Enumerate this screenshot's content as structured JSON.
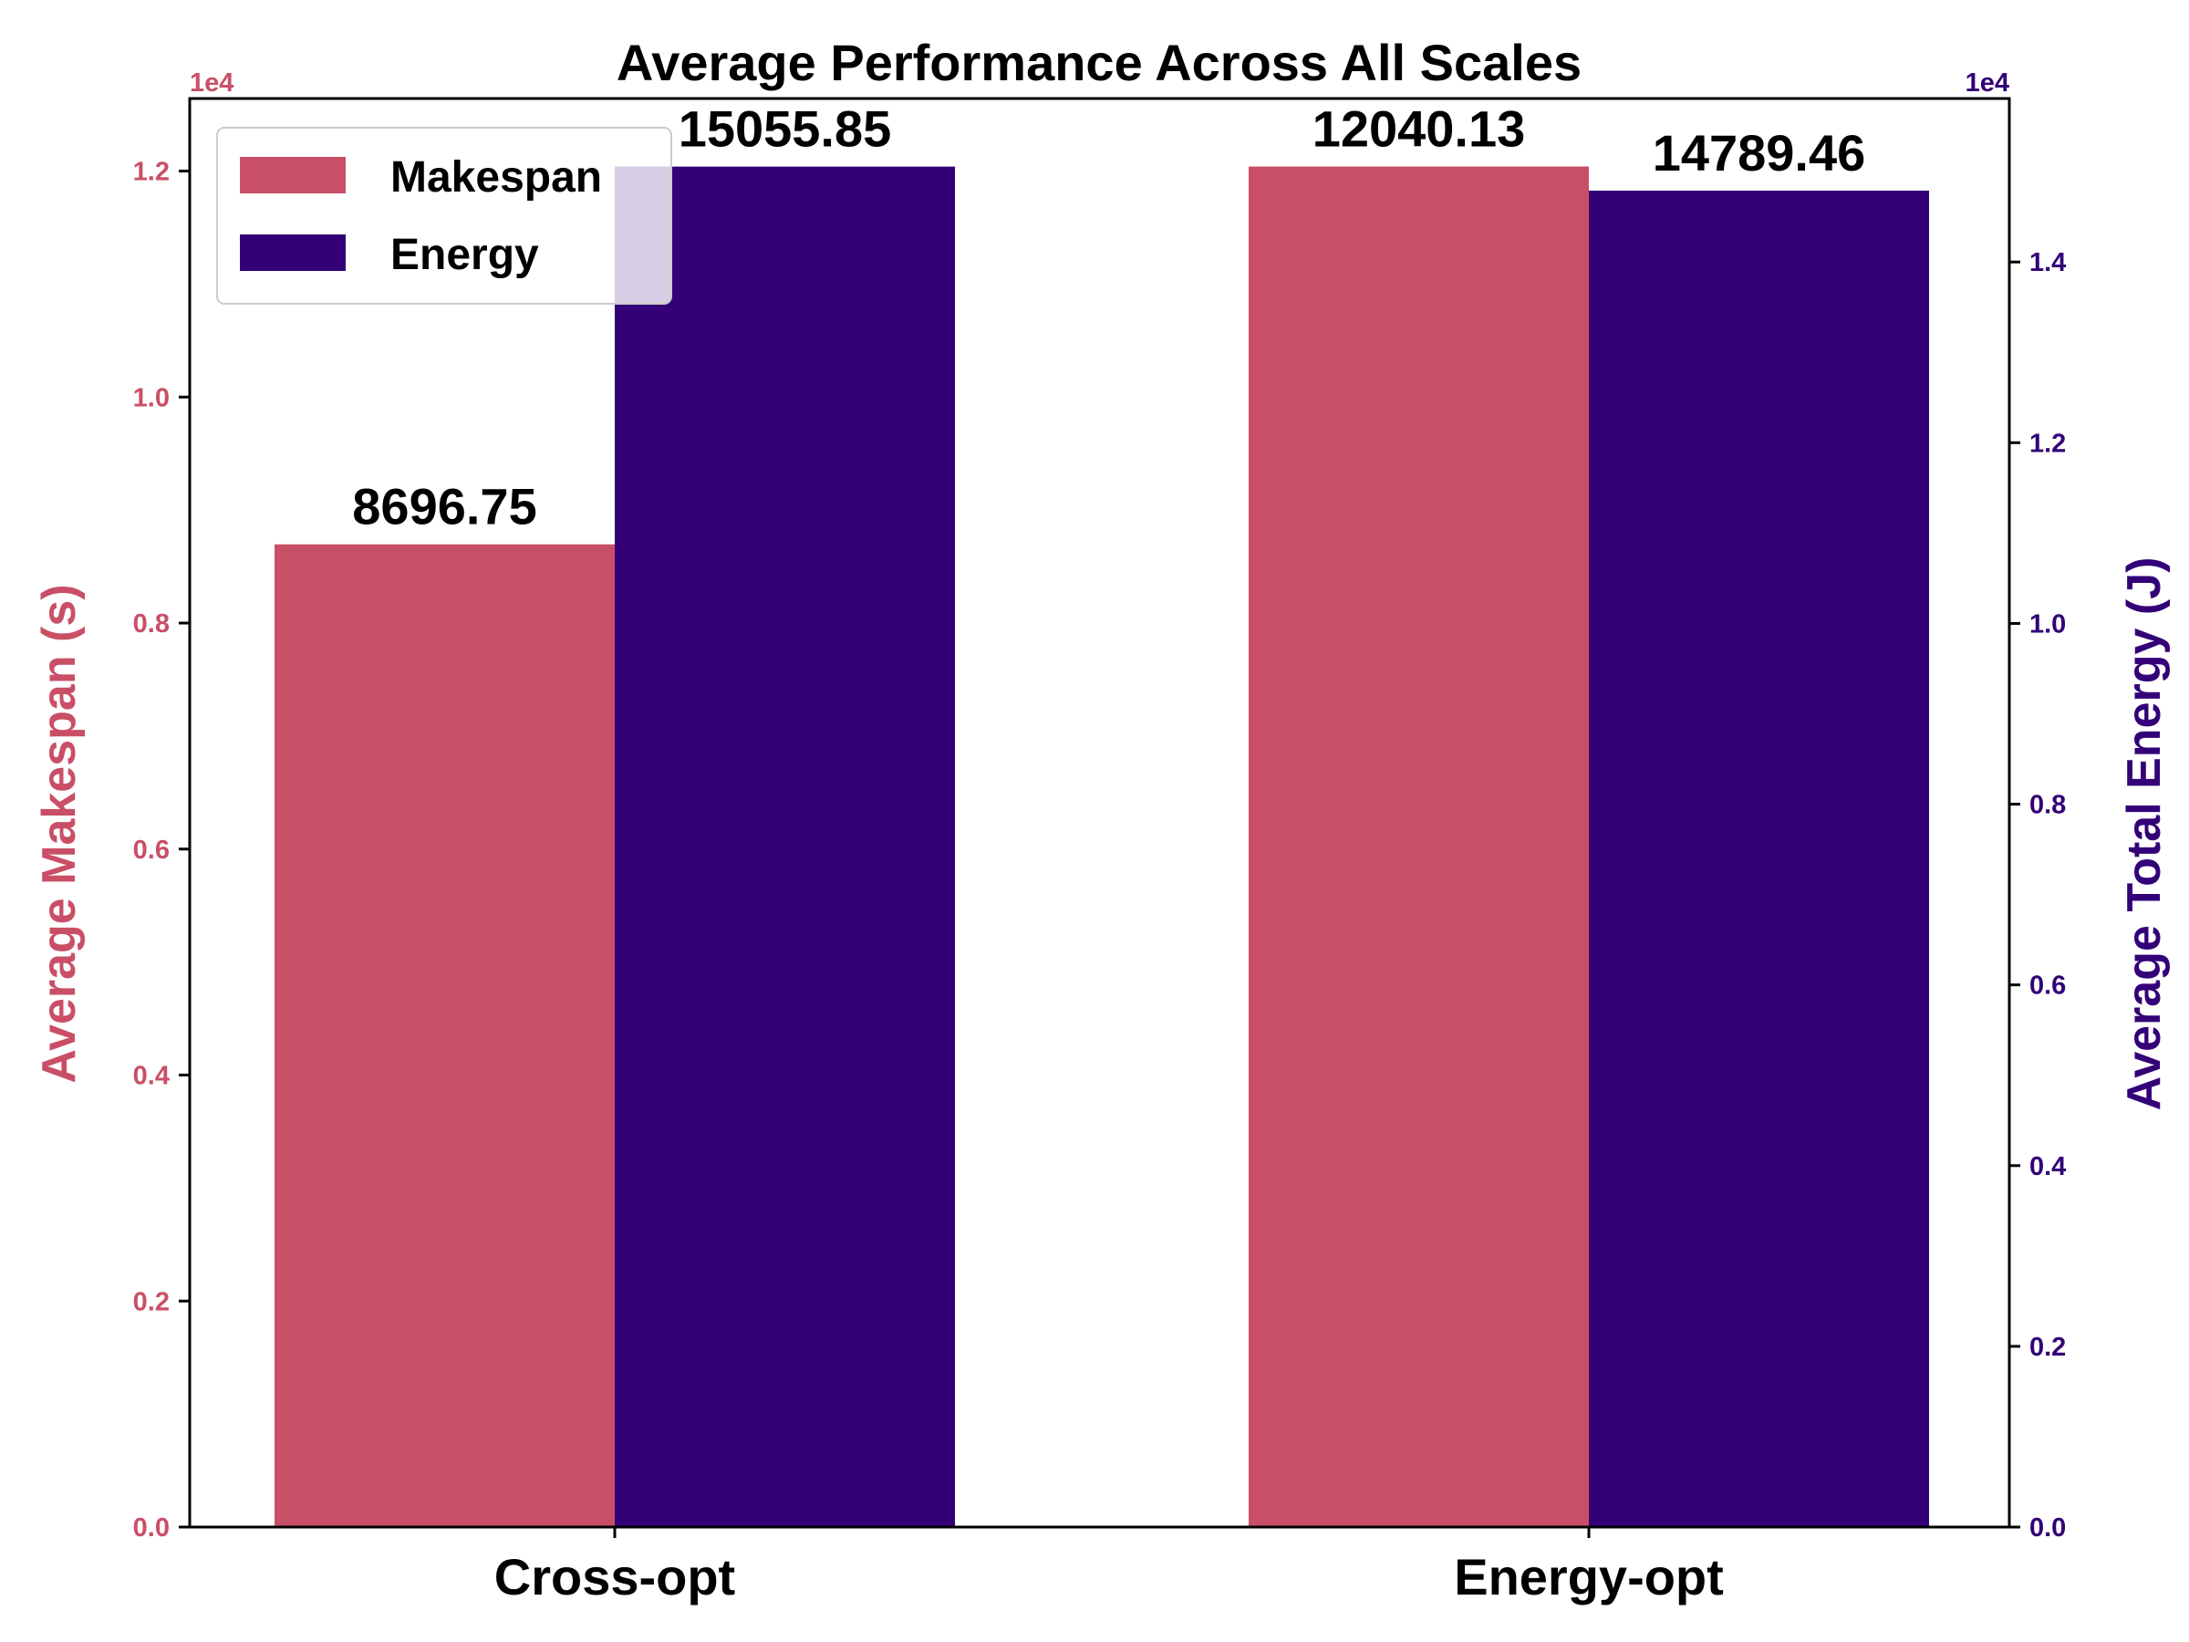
{
  "chart_data": {
    "type": "bar",
    "title": "Average Performance Across All Scales",
    "categories": [
      "Cross-opt",
      "Energy-opt"
    ],
    "series": [
      {
        "name": "Makespan",
        "axis": "left",
        "color": "#c94f66",
        "values": [
          8696.75,
          12040.13
        ],
        "labels": [
          "8696.75",
          "12040.13"
        ]
      },
      {
        "name": "Energy",
        "axis": "right",
        "color": "#330077",
        "values": [
          15055.85,
          14789.46
        ],
        "labels": [
          "15055.85",
          "14789.46"
        ]
      }
    ],
    "left_axis": {
      "label": "Average Makespan (s)",
      "color": "#c94f66",
      "multiplier": "1e4",
      "ylim": [
        0,
        12642
      ],
      "ticks": [
        0,
        2000,
        4000,
        6000,
        8000,
        10000,
        12000
      ],
      "tick_labels": [
        "0.0",
        "0.2",
        "0.4",
        "0.6",
        "0.8",
        "1.0",
        "1.2"
      ]
    },
    "right_axis": {
      "label": "Average Total Energy (J)",
      "color": "#330077",
      "multiplier": "1e4",
      "ylim": [
        0,
        15809
      ],
      "ticks": [
        0,
        2000,
        4000,
        6000,
        8000,
        10000,
        12000,
        14000
      ],
      "tick_labels": [
        "0.0",
        "0.2",
        "0.4",
        "0.6",
        "0.8",
        "1.0",
        "1.2",
        "1.4"
      ]
    },
    "legend": {
      "placement": "top-left",
      "entries": [
        "Makespan",
        "Energy"
      ]
    },
    "grid": false
  }
}
